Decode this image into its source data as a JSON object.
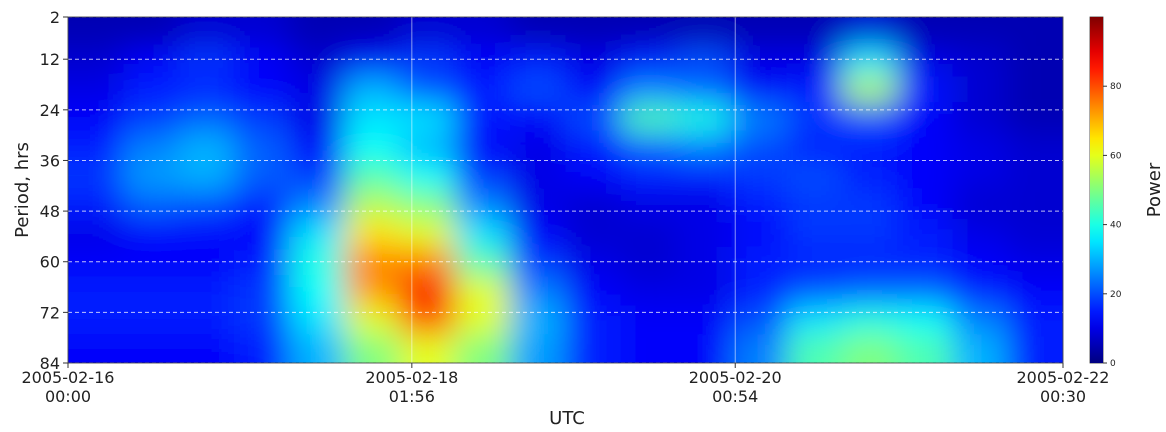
{
  "chart_data": {
    "type": "heatmap",
    "x_label": "UTC",
    "y_label": "Period, hrs",
    "colorbar_label": "Power",
    "xlim": [
      "2005-02-16 00:00",
      "2005-02-22 00:30"
    ],
    "xticks": [
      {
        "value": "2005-02-16 00:00",
        "label": [
          "2005-02-16",
          "00:00"
        ]
      },
      {
        "value": "2005-02-18 01:56",
        "label": [
          "2005-02-18",
          "01:56"
        ]
      },
      {
        "value": "2005-02-20 00:54",
        "label": [
          "2005-02-20",
          "00:54"
        ]
      },
      {
        "value": "2005-02-22 00:30",
        "label": [
          "2005-02-22",
          "00:30"
        ]
      }
    ],
    "ylim": [
      2,
      84
    ],
    "y_inverted": true,
    "yticks": [
      2,
      12,
      24,
      36,
      48,
      60,
      72,
      84
    ],
    "clim": [
      0,
      100
    ],
    "cticks": [
      0,
      20,
      40,
      60,
      80
    ],
    "colormap": "jet",
    "grid": true,
    "values": [
      [
        5,
        5,
        8,
        8,
        5,
        5,
        8,
        8,
        5,
        5,
        5,
        5,
        5,
        5,
        8,
        5,
        5,
        5
      ],
      [
        8,
        12,
        18,
        12,
        8,
        12,
        18,
        12,
        15,
        10,
        15,
        20,
        10,
        10,
        35,
        10,
        8,
        5
      ],
      [
        10,
        15,
        15,
        12,
        10,
        30,
        20,
        15,
        20,
        12,
        25,
        22,
        12,
        15,
        55,
        15,
        8,
        5
      ],
      [
        12,
        18,
        22,
        18,
        10,
        35,
        35,
        15,
        12,
        20,
        45,
        40,
        25,
        18,
        20,
        12,
        8,
        5
      ],
      [
        15,
        25,
        30,
        22,
        12,
        38,
        30,
        12,
        10,
        15,
        22,
        25,
        20,
        15,
        15,
        12,
        10,
        8
      ],
      [
        18,
        28,
        30,
        22,
        18,
        45,
        38,
        18,
        10,
        12,
        15,
        15,
        18,
        20,
        15,
        12,
        10,
        8
      ],
      [
        15,
        22,
        20,
        15,
        25,
        55,
        50,
        25,
        10,
        8,
        10,
        10,
        15,
        18,
        18,
        12,
        8,
        8
      ],
      [
        10,
        12,
        12,
        12,
        35,
        65,
        60,
        35,
        12,
        8,
        8,
        10,
        12,
        18,
        18,
        15,
        10,
        8
      ],
      [
        12,
        12,
        12,
        15,
        40,
        75,
        75,
        45,
        18,
        10,
        8,
        10,
        15,
        15,
        15,
        15,
        12,
        10
      ],
      [
        15,
        15,
        15,
        18,
        38,
        72,
        88,
        60,
        25,
        12,
        10,
        10,
        15,
        20,
        22,
        22,
        15,
        12
      ],
      [
        15,
        15,
        15,
        18,
        35,
        60,
        80,
        60,
        30,
        15,
        12,
        12,
        20,
        35,
        40,
        38,
        25,
        15
      ],
      [
        12,
        12,
        12,
        15,
        30,
        50,
        60,
        50,
        28,
        15,
        12,
        12,
        25,
        45,
        50,
        45,
        30,
        15
      ]
    ]
  }
}
